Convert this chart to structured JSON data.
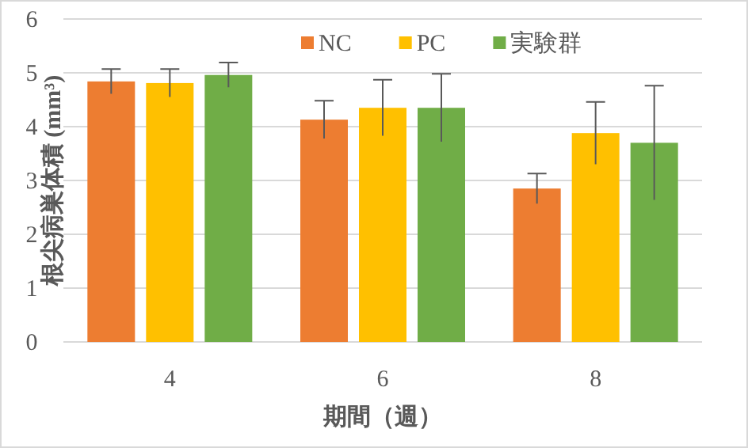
{
  "chart_data": {
    "type": "bar",
    "xlabel": "期間（週）",
    "ylabel": "根尖病巣体積 (mm³)",
    "categories": [
      "4",
      "6",
      "8"
    ],
    "series": [
      {
        "name": "NC",
        "color": "#ed7d31",
        "values": [
          4.84,
          4.13,
          2.85
        ],
        "errors": [
          0.23,
          0.35,
          0.28
        ]
      },
      {
        "name": "PC",
        "color": "#ffc000",
        "values": [
          4.81,
          4.35,
          3.88
        ],
        "errors": [
          0.26,
          0.52,
          0.58
        ]
      },
      {
        "name": "実験群",
        "color": "#70ad47",
        "values": [
          4.96,
          4.35,
          3.7
        ],
        "errors": [
          0.23,
          0.63,
          1.06
        ]
      }
    ],
    "ylim": [
      0,
      6
    ],
    "yticks": [
      0,
      1,
      2,
      3,
      4,
      5,
      6
    ],
    "grid": "y",
    "legend": "top"
  }
}
